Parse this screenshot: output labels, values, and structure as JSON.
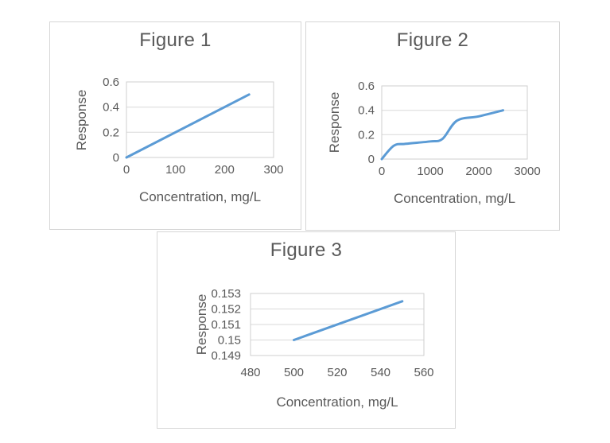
{
  "colors": {
    "line": "#5b9bd5",
    "gridline": "#d9d9d9",
    "plot_border": "#cfcfcf",
    "text": "#595959",
    "panel_border": "#d6d6d6",
    "background": "#ffffff"
  },
  "chart_data": [
    {
      "type": "line",
      "title": "Figure 1",
      "xlabel": "Concentration, mg/L",
      "ylabel": "Response",
      "xlim": [
        0,
        300
      ],
      "ylim": [
        0,
        0.6
      ],
      "x_ticks": [
        0,
        100,
        200,
        300
      ],
      "y_ticks": [
        0,
        0.2,
        0.4,
        0.6
      ],
      "grid": "horizontal",
      "legend": "none",
      "smooth": false,
      "series": [
        {
          "points": [
            [
              0,
              0
            ],
            [
              250,
              0.5
            ]
          ]
        }
      ]
    },
    {
      "type": "line",
      "title": "Figure 2",
      "xlabel": "Concentration, mg/L",
      "ylabel": "Response",
      "xlim": [
        0,
        3000
      ],
      "ylim": [
        0,
        0.6
      ],
      "x_ticks": [
        0,
        1000,
        2000,
        3000
      ],
      "y_ticks": [
        0,
        0.2,
        0.4,
        0.6
      ],
      "grid": "horizontal",
      "legend": "none",
      "smooth": true,
      "series": [
        {
          "points": [
            [
              0,
              0
            ],
            [
              250,
              0.11
            ],
            [
              500,
              0.125
            ],
            [
              1000,
              0.145
            ],
            [
              1250,
              0.165
            ],
            [
              1550,
              0.315
            ],
            [
              2000,
              0.35
            ],
            [
              2500,
              0.4
            ]
          ]
        }
      ]
    },
    {
      "type": "line",
      "title": "Figure 3",
      "xlabel": "Concentration, mg/L",
      "ylabel": "Response",
      "xlim": [
        480,
        560
      ],
      "ylim": [
        0.149,
        0.153
      ],
      "x_ticks": [
        480,
        500,
        520,
        540,
        560
      ],
      "y_ticks": [
        0.149,
        0.15,
        0.151,
        0.152,
        0.153
      ],
      "grid": "horizontal",
      "legend": "none",
      "smooth": false,
      "series": [
        {
          "points": [
            [
              500,
              0.15
            ],
            [
              550,
              0.1525
            ]
          ]
        }
      ]
    }
  ]
}
